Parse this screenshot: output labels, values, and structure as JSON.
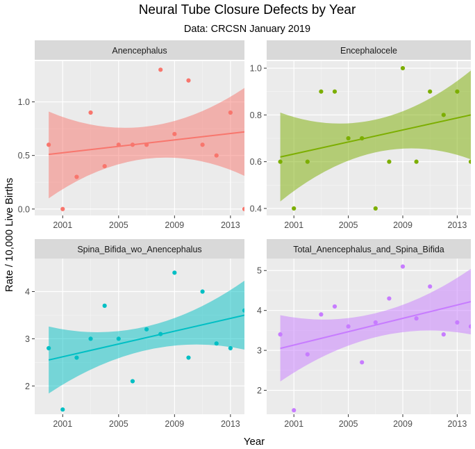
{
  "title": "Neural Tube Closure Defects by Year",
  "subtitle": "Data: CRCSN January 2019",
  "ylabel": "Rate / 10,000 Live Births",
  "xlabel": "Year",
  "chart_data": [
    {
      "type": "scatter",
      "title": "Anencephalus",
      "color": "#F8766D",
      "band_color": "#F8766D",
      "xlim": [
        1999,
        2014
      ],
      "ylim": [
        -0.06,
        1.38
      ],
      "xticks": [
        2001,
        2005,
        2009,
        2013
      ],
      "yticks": [
        0.0,
        0.5,
        1.0
      ],
      "ytick_labels": [
        "0.0",
        "0.5",
        "1.0"
      ],
      "points": [
        {
          "x": 2000,
          "y": 0.6
        },
        {
          "x": 2001,
          "y": 0.0
        },
        {
          "x": 2002,
          "y": 0.3
        },
        {
          "x": 2003,
          "y": 0.9
        },
        {
          "x": 2004,
          "y": 0.4
        },
        {
          "x": 2005,
          "y": 0.6
        },
        {
          "x": 2006,
          "y": 0.6
        },
        {
          "x": 2007,
          "y": 0.6
        },
        {
          "x": 2008,
          "y": 1.3
        },
        {
          "x": 2009,
          "y": 0.7
        },
        {
          "x": 2010,
          "y": 1.2
        },
        {
          "x": 2011,
          "y": 0.6
        },
        {
          "x": 2012,
          "y": 0.5
        },
        {
          "x": 2013,
          "y": 0.9
        },
        {
          "x": 2014,
          "y": 0.0
        }
      ],
      "fit": {
        "x": [
          2000,
          2014
        ],
        "y": [
          0.51,
          0.72
        ]
      },
      "band": {
        "x": [
          2000,
          2007,
          2014
        ],
        "lower": [
          0.1,
          0.47,
          0.31
        ],
        "upper": [
          0.91,
          0.77,
          1.13
        ]
      }
    },
    {
      "type": "scatter",
      "title": "Encephalocele",
      "color": "#7CAE00",
      "band_color": "#7CAE00",
      "xlim": [
        1999,
        2014
      ],
      "ylim": [
        0.37,
        1.03
      ],
      "xticks": [
        2001,
        2005,
        2009,
        2013
      ],
      "yticks": [
        0.4,
        0.6,
        0.8,
        1.0
      ],
      "ytick_labels": [
        "0.4",
        "0.6",
        "0.8",
        "1.0"
      ],
      "points": [
        {
          "x": 2000,
          "y": 0.6
        },
        {
          "x": 2001,
          "y": 0.4
        },
        {
          "x": 2002,
          "y": 0.6
        },
        {
          "x": 2003,
          "y": 0.9
        },
        {
          "x": 2004,
          "y": 0.9
        },
        {
          "x": 2005,
          "y": 0.7
        },
        {
          "x": 2006,
          "y": 0.7
        },
        {
          "x": 2007,
          "y": 0.4
        },
        {
          "x": 2008,
          "y": 0.6
        },
        {
          "x": 2009,
          "y": 1.0
        },
        {
          "x": 2010,
          "y": 0.6
        },
        {
          "x": 2011,
          "y": 0.9
        },
        {
          "x": 2012,
          "y": 0.8
        },
        {
          "x": 2013,
          "y": 0.9
        },
        {
          "x": 2014,
          "y": 0.6
        }
      ],
      "fit": {
        "x": [
          2000,
          2014
        ],
        "y": [
          0.62,
          0.8
        ]
      },
      "band": {
        "x": [
          2000,
          2007,
          2014
        ],
        "lower": [
          0.43,
          0.64,
          0.61
        ],
        "upper": [
          0.81,
          0.78,
          0.99
        ]
      }
    },
    {
      "type": "scatter",
      "title": "Spina_Bifida_wo_Anencephalus",
      "color": "#00BFC4",
      "band_color": "#00BFC4",
      "xlim": [
        1999,
        2014
      ],
      "ylim": [
        1.4,
        4.7
      ],
      "xticks": [
        2001,
        2005,
        2009,
        2013
      ],
      "yticks": [
        2,
        3,
        4
      ],
      "ytick_labels": [
        "2",
        "3",
        "4"
      ],
      "points": [
        {
          "x": 2000,
          "y": 2.8
        },
        {
          "x": 2001,
          "y": 1.5
        },
        {
          "x": 2002,
          "y": 2.6
        },
        {
          "x": 2003,
          "y": 3.0
        },
        {
          "x": 2004,
          "y": 3.7
        },
        {
          "x": 2005,
          "y": 3.0
        },
        {
          "x": 2006,
          "y": 2.1
        },
        {
          "x": 2007,
          "y": 3.2
        },
        {
          "x": 2008,
          "y": 3.1
        },
        {
          "x": 2009,
          "y": 4.4
        },
        {
          "x": 2010,
          "y": 2.6
        },
        {
          "x": 2011,
          "y": 4.0
        },
        {
          "x": 2012,
          "y": 2.9
        },
        {
          "x": 2013,
          "y": 2.8
        },
        {
          "x": 2014,
          "y": 3.6
        }
      ],
      "fit": {
        "x": [
          2000,
          2014
        ],
        "y": [
          2.55,
          3.5
        ]
      },
      "band": {
        "x": [
          2000,
          2007,
          2014
        ],
        "lower": [
          1.84,
          2.76,
          2.77
        ],
        "upper": [
          3.26,
          3.26,
          4.23
        ]
      }
    },
    {
      "type": "scatter",
      "title": "Total_Anencephalus_and_Spina_Bifida",
      "color": "#C77CFF",
      "band_color": "#C77CFF",
      "xlim": [
        1999,
        2014
      ],
      "ylim": [
        1.4,
        5.3
      ],
      "xticks": [
        2001,
        2005,
        2009,
        2013
      ],
      "yticks": [
        2,
        3,
        4,
        5
      ],
      "ytick_labels": [
        "2",
        "3",
        "4",
        "5"
      ],
      "points": [
        {
          "x": 2000,
          "y": 3.4
        },
        {
          "x": 2001,
          "y": 1.5
        },
        {
          "x": 2002,
          "y": 2.9
        },
        {
          "x": 2003,
          "y": 3.9
        },
        {
          "x": 2004,
          "y": 4.1
        },
        {
          "x": 2005,
          "y": 3.6
        },
        {
          "x": 2006,
          "y": 2.7
        },
        {
          "x": 2007,
          "y": 3.7
        },
        {
          "x": 2008,
          "y": 4.3
        },
        {
          "x": 2009,
          "y": 5.1
        },
        {
          "x": 2010,
          "y": 3.8
        },
        {
          "x": 2011,
          "y": 4.6
        },
        {
          "x": 2012,
          "y": 3.4
        },
        {
          "x": 2013,
          "y": 3.7
        },
        {
          "x": 2014,
          "y": 3.6
        }
      ],
      "fit": {
        "x": [
          2000,
          2014
        ],
        "y": [
          3.05,
          4.22
        ]
      },
      "band": {
        "x": [
          2000,
          2007,
          2014
        ],
        "lower": [
          2.22,
          3.33,
          3.4
        ],
        "upper": [
          3.88,
          3.93,
          5.04
        ]
      }
    }
  ]
}
